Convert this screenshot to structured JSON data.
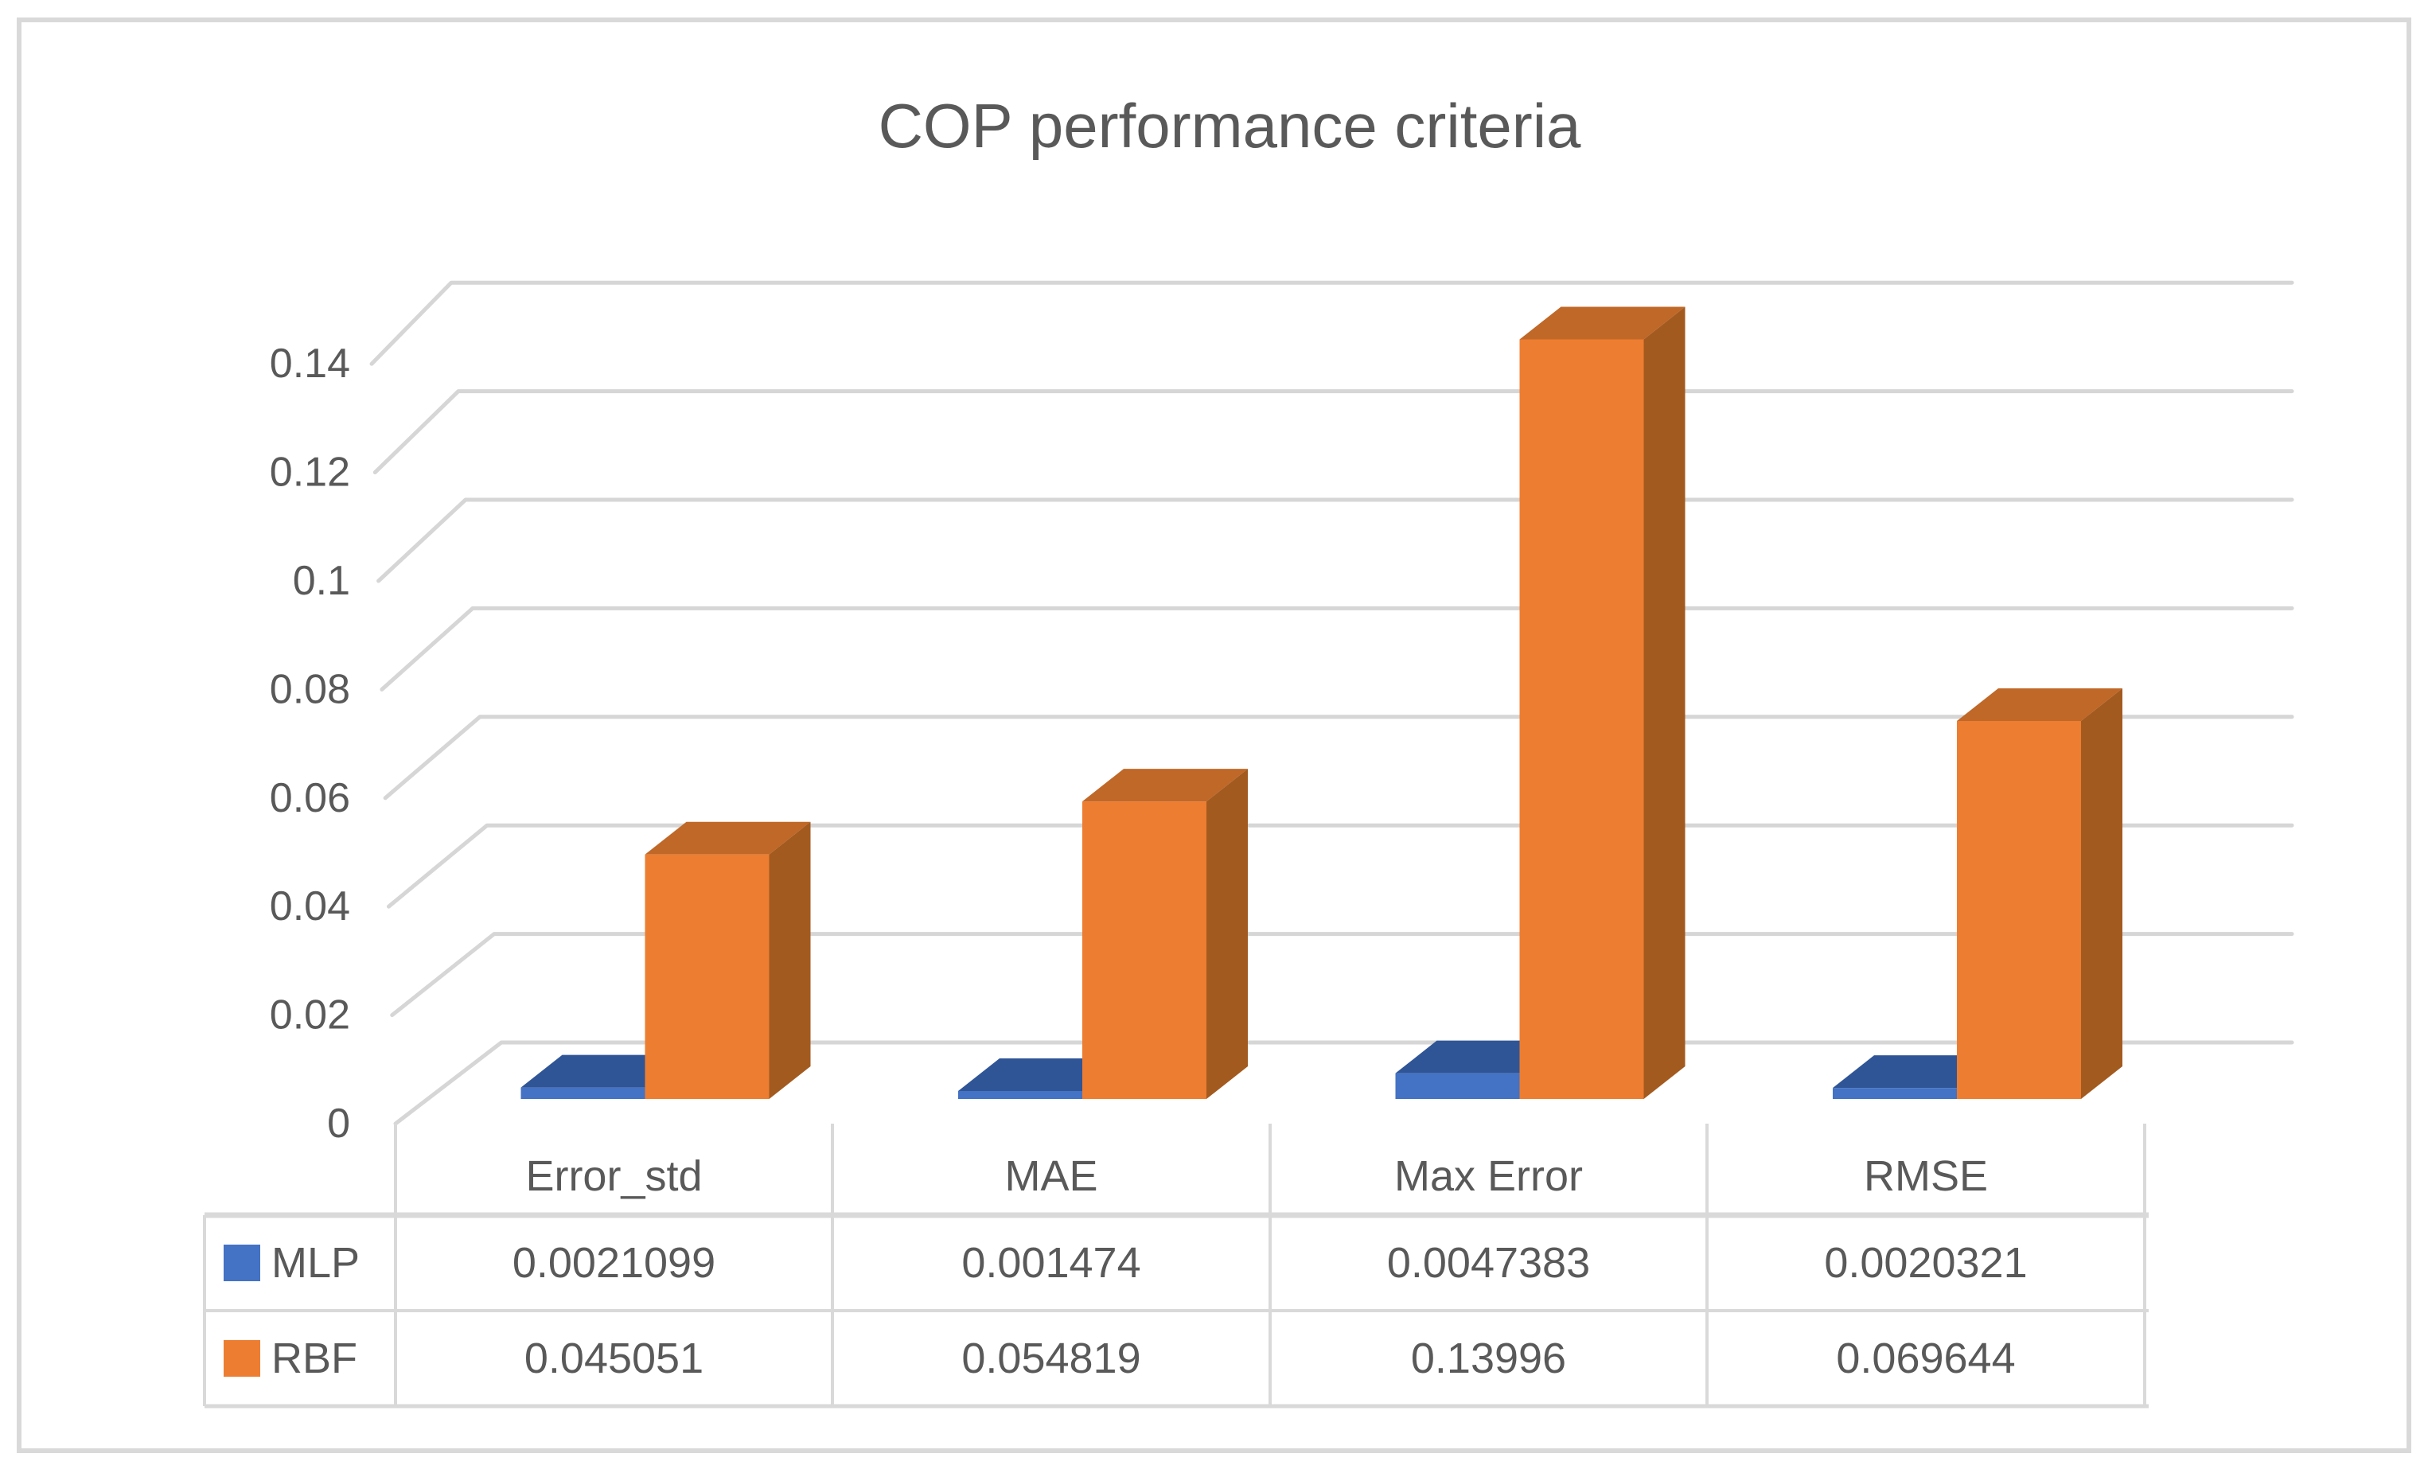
{
  "figure": {
    "background": "#FFFFFF",
    "frame_color": "#D9D9D9",
    "text_color": "#595959",
    "gridline_color": "#D6D6D6",
    "table_border_color": "#D9D9D9"
  },
  "chart_data": {
    "type": "bar",
    "style": "3d-clustered-column",
    "title": "COP performance criteria",
    "categories": [
      "Error_std",
      "MAE",
      "Max Error",
      "RMSE"
    ],
    "series": [
      {
        "name": "MLP",
        "color": "#4472C4",
        "color_top": "#2F5597",
        "color_side": "#203F73",
        "values": [
          0.0021099,
          0.001474,
          0.0047383,
          0.0020321
        ],
        "labels": [
          "0.0021099",
          "0.001474",
          "0.0047383",
          "0.0020321"
        ]
      },
      {
        "name": "RBF",
        "color": "#ED7D31",
        "color_top": "#C06828",
        "color_side": "#A35A1F",
        "values": [
          0.045051,
          0.054819,
          0.13996,
          0.069644
        ],
        "labels": [
          "0.045051",
          "0.054819",
          "0.13996",
          "0.069644"
        ]
      }
    ],
    "ylim": [
      0,
      0.14
    ],
    "ytick_step": 0.02,
    "ytick_labels": [
      "0",
      "0.02",
      "0.04",
      "0.06",
      "0.08",
      "0.1",
      "0.12",
      "0.14"
    ],
    "grid": true,
    "legend_position": "data-table-left",
    "data_table": true,
    "xlabel": "",
    "ylabel": ""
  }
}
